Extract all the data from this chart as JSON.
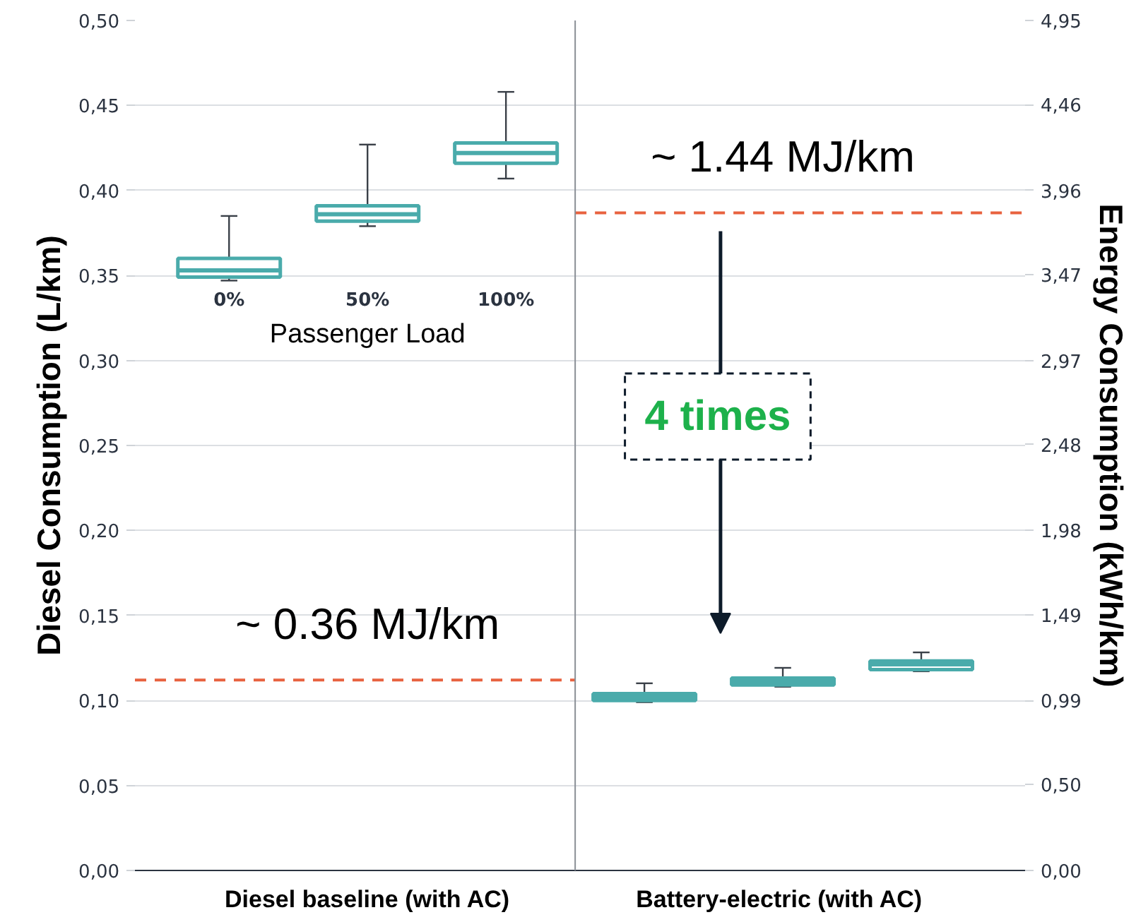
{
  "chart_data": {
    "type": "box",
    "categories": [
      "0%",
      "50%",
      "100%",
      null,
      null,
      null
    ],
    "xlabel": "Passenger Load",
    "ylabel": "Diesel Consumption (L/km)",
    "y2label": "Energy Consumption (kWh/km)",
    "ylim": [
      0,
      0.5
    ],
    "yticks": [
      {
        "value": 0,
        "label": "0,00"
      },
      {
        "value": 0.05,
        "label": "0,05"
      },
      {
        "value": 0.1,
        "label": "0,10"
      },
      {
        "value": 0.15,
        "label": "0,15"
      },
      {
        "value": 0.2,
        "label": "0,20"
      },
      {
        "value": 0.25,
        "label": "0,25"
      },
      {
        "value": 0.3,
        "label": "0,30"
      },
      {
        "value": 0.35,
        "label": "0,35"
      },
      {
        "value": 0.4,
        "label": "0,40"
      },
      {
        "value": 0.45,
        "label": "0,45"
      },
      {
        "value": 0.5,
        "label": "0,50"
      }
    ],
    "y2lim": [
      0,
      4.95
    ],
    "y2ticks": [
      {
        "value": 0,
        "label": "0,00"
      },
      {
        "value": 0.5,
        "label": "0,50"
      },
      {
        "value": 0.99,
        "label": "0,99"
      },
      {
        "value": 1.49,
        "label": "1,49"
      },
      {
        "value": 1.98,
        "label": "1,98"
      },
      {
        "value": 2.48,
        "label": "2,48"
      },
      {
        "value": 2.97,
        "label": "2,97"
      },
      {
        "value": 3.47,
        "label": "3,47"
      },
      {
        "value": 3.96,
        "label": "3,96"
      },
      {
        "value": 4.46,
        "label": "4,46"
      },
      {
        "value": 4.95,
        "label": "4,95"
      }
    ],
    "grid": "y",
    "series": [
      {
        "color": "#4aabab",
        "boxes": [
          {
            "low": 0.347,
            "q1": 0.349,
            "median": 0.353,
            "q3": 0.36,
            "high": 0.385
          },
          {
            "low": 0.379,
            "q1": 0.382,
            "median": 0.386,
            "q3": 0.391,
            "high": 0.427
          },
          {
            "low": 0.407,
            "q1": 0.416,
            "median": 0.422,
            "q3": 0.428,
            "high": 0.458
          },
          null,
          null,
          null
        ]
      },
      {
        "color": "#4aabab",
        "axis": "y2",
        "boxes": [
          null,
          null,
          null,
          {
            "low": 0.98,
            "q1": 0.99,
            "median": 1.01,
            "q3": 1.03,
            "high": 1.09
          },
          {
            "low": 1.07,
            "q1": 1.08,
            "median": 1.1,
            "q3": 1.12,
            "high": 1.18
          },
          {
            "low": 1.16,
            "q1": 1.17,
            "median": 1.2,
            "q3": 1.22,
            "high": 1.27
          }
        ]
      }
    ],
    "ref_lines": [
      {
        "axis": "y",
        "value": 0.112,
        "label": "~ 0.36 MJ/km",
        "color": "#e8623f",
        "line_style": "dashed"
      },
      {
        "axis": "y2",
        "value": 3.83,
        "label": "~ 1.44 MJ/km",
        "color": "#e8623f",
        "line_style": "dashed"
      }
    ],
    "annotations": [
      "Diesel baseline (with AC)",
      "Battery-electric  (with AC)",
      "4 times"
    ]
  }
}
